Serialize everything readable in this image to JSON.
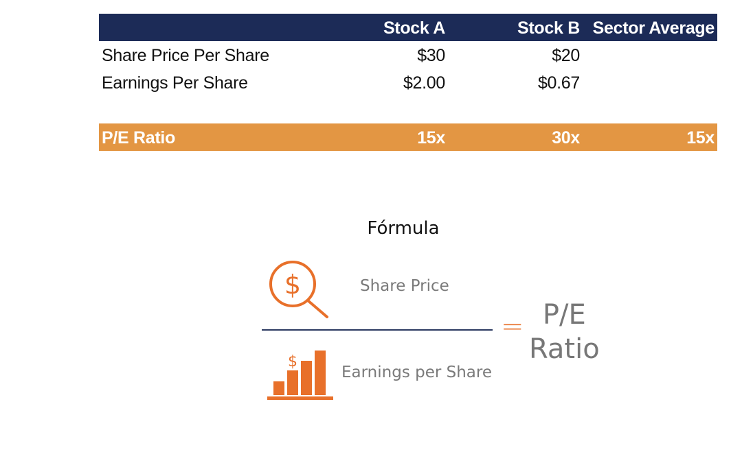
{
  "table": {
    "headers": {
      "label": "",
      "stock_a": "Stock A",
      "stock_b": "Stock B",
      "sector": "Sector Average"
    },
    "rows": [
      {
        "label": "Share Price Per Share",
        "stock_a": "$30",
        "stock_b": "$20",
        "sector": ""
      },
      {
        "label": "Earnings Per Share",
        "stock_a": "$2.00",
        "stock_b": "$0.67",
        "sector": ""
      }
    ],
    "total": {
      "label": "P/E Ratio",
      "stock_a": "15x",
      "stock_b": "30x",
      "sector": "15x"
    }
  },
  "formula": {
    "title": "Fórmula",
    "numerator": "Share Price",
    "denominator": "Earnings per Share",
    "equals": "=",
    "result_line1": "P/E",
    "result_line2": "Ratio",
    "icon_top": "magnifier-dollar-icon",
    "icon_bottom": "bar-chart-dollar-icon",
    "dollar_glyph": "$"
  },
  "colors": {
    "header_bg": "#1c2b57",
    "total_bg": "#e39643",
    "accent": "#e8702a"
  }
}
